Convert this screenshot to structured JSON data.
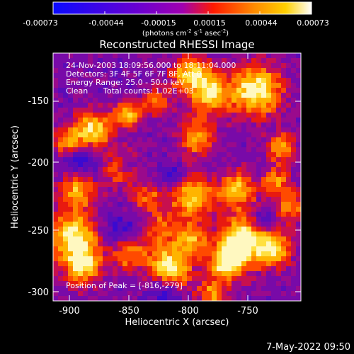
{
  "colorbar": {
    "tick_labels": [
      "-0.00073",
      "-0.00044",
      "-0.00015",
      "0.00015",
      "0.00044",
      "0.00073"
    ],
    "unit_parts": [
      "(photons cm",
      "-2",
      " s",
      "-1",
      " asec",
      "-2",
      ")"
    ]
  },
  "title": "Reconstructed RHESSI Image",
  "info": {
    "line1": "24-Nov-2003 18:09:56.000 to 18:11:04.000",
    "line2": "Detectors: 3F 4F 5F 6F 7F 8F, Att 0",
    "line3": "Energy Range: 25.0 - 50.0 keV",
    "line4_a": "Clean",
    "line4_b": "Total counts: 1.02E+03",
    "peak": "Position of Peak = [-816,-279]"
  },
  "axes": {
    "xlabel": "Heliocentric X (arcsec)",
    "ylabel": "Heliocentric Y (arcsec)",
    "x_ticks": [
      "-900",
      "-850",
      "-800",
      "-750"
    ],
    "y_ticks": [
      "-150",
      "-200",
      "-250",
      "-300"
    ]
  },
  "timestamp": "7-May-2022 09:50",
  "colors": {
    "background": "#000000",
    "colormap": [
      "#0a0aff",
      "#7a00c8",
      "#b400b4",
      "#ff2a00",
      "#ff8c00",
      "#ffd200",
      "#ffffff"
    ]
  }
}
